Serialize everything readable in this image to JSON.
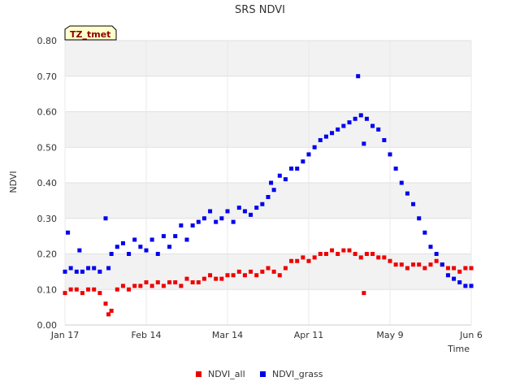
{
  "chart_data": {
    "type": "scatter",
    "title": "SRS NDVI",
    "xlabel": "Time",
    "ylabel": "NDVI",
    "badge": "TZ_tmet",
    "x_unit": "days since Jan 17",
    "xlim": [
      0,
      140
    ],
    "ylim": [
      0,
      0.8
    ],
    "yticks": [
      0.0,
      0.1,
      0.2,
      0.3,
      0.4,
      0.5,
      0.6,
      0.7,
      0.8
    ],
    "ytick_labels": [
      "0.00",
      "0.10",
      "0.20",
      "0.30",
      "0.40",
      "0.50",
      "0.60",
      "0.70",
      "0.80"
    ],
    "xticks": [
      0,
      28,
      56,
      84,
      112,
      140
    ],
    "xtick_labels": [
      "Jan 17",
      "Feb 14",
      "Mar 14",
      "Apr 11",
      "May 9",
      "Jun 6"
    ],
    "legend_position": "bottom-center",
    "series": [
      {
        "name": "NDVI_all",
        "color": "#ee0000",
        "points": [
          [
            0,
            0.09
          ],
          [
            2,
            0.1
          ],
          [
            4,
            0.1
          ],
          [
            6,
            0.09
          ],
          [
            8,
            0.1
          ],
          [
            10,
            0.1
          ],
          [
            12,
            0.09
          ],
          [
            14,
            0.06
          ],
          [
            15,
            0.03
          ],
          [
            16,
            0.04
          ],
          [
            18,
            0.1
          ],
          [
            20,
            0.11
          ],
          [
            22,
            0.1
          ],
          [
            24,
            0.11
          ],
          [
            26,
            0.11
          ],
          [
            28,
            0.12
          ],
          [
            30,
            0.11
          ],
          [
            32,
            0.12
          ],
          [
            34,
            0.11
          ],
          [
            36,
            0.12
          ],
          [
            38,
            0.12
          ],
          [
            40,
            0.11
          ],
          [
            42,
            0.13
          ],
          [
            44,
            0.12
          ],
          [
            46,
            0.12
          ],
          [
            48,
            0.13
          ],
          [
            50,
            0.14
          ],
          [
            52,
            0.13
          ],
          [
            54,
            0.13
          ],
          [
            56,
            0.14
          ],
          [
            58,
            0.14
          ],
          [
            60,
            0.15
          ],
          [
            62,
            0.14
          ],
          [
            64,
            0.15
          ],
          [
            66,
            0.14
          ],
          [
            68,
            0.15
          ],
          [
            70,
            0.16
          ],
          [
            72,
            0.15
          ],
          [
            74,
            0.14
          ],
          [
            76,
            0.16
          ],
          [
            78,
            0.18
          ],
          [
            80,
            0.18
          ],
          [
            82,
            0.19
          ],
          [
            84,
            0.18
          ],
          [
            86,
            0.19
          ],
          [
            88,
            0.2
          ],
          [
            90,
            0.2
          ],
          [
            92,
            0.21
          ],
          [
            94,
            0.2
          ],
          [
            96,
            0.21
          ],
          [
            98,
            0.21
          ],
          [
            100,
            0.2
          ],
          [
            102,
            0.19
          ],
          [
            103,
            0.09
          ],
          [
            104,
            0.2
          ],
          [
            106,
            0.2
          ],
          [
            108,
            0.19
          ],
          [
            110,
            0.19
          ],
          [
            112,
            0.18
          ],
          [
            114,
            0.17
          ],
          [
            116,
            0.17
          ],
          [
            118,
            0.16
          ],
          [
            120,
            0.17
          ],
          [
            122,
            0.17
          ],
          [
            124,
            0.16
          ],
          [
            126,
            0.17
          ],
          [
            128,
            0.18
          ],
          [
            130,
            0.17
          ],
          [
            132,
            0.16
          ],
          [
            134,
            0.16
          ],
          [
            136,
            0.15
          ],
          [
            138,
            0.16
          ],
          [
            140,
            0.16
          ]
        ]
      },
      {
        "name": "NDVI_grass",
        "color": "#0000ee",
        "points": [
          [
            0,
            0.15
          ],
          [
            1,
            0.26
          ],
          [
            2,
            0.16
          ],
          [
            4,
            0.15
          ],
          [
            5,
            0.21
          ],
          [
            6,
            0.15
          ],
          [
            8,
            0.16
          ],
          [
            10,
            0.16
          ],
          [
            12,
            0.15
          ],
          [
            14,
            0.3
          ],
          [
            15,
            0.16
          ],
          [
            16,
            0.2
          ],
          [
            18,
            0.22
          ],
          [
            20,
            0.23
          ],
          [
            22,
            0.2
          ],
          [
            24,
            0.24
          ],
          [
            26,
            0.22
          ],
          [
            28,
            0.21
          ],
          [
            30,
            0.24
          ],
          [
            32,
            0.2
          ],
          [
            34,
            0.25
          ],
          [
            36,
            0.22
          ],
          [
            38,
            0.25
          ],
          [
            40,
            0.28
          ],
          [
            42,
            0.24
          ],
          [
            44,
            0.28
          ],
          [
            46,
            0.29
          ],
          [
            48,
            0.3
          ],
          [
            50,
            0.32
          ],
          [
            52,
            0.29
          ],
          [
            54,
            0.3
          ],
          [
            56,
            0.32
          ],
          [
            58,
            0.29
          ],
          [
            60,
            0.33
          ],
          [
            62,
            0.32
          ],
          [
            64,
            0.31
          ],
          [
            66,
            0.33
          ],
          [
            68,
            0.34
          ],
          [
            70,
            0.36
          ],
          [
            71,
            0.4
          ],
          [
            72,
            0.38
          ],
          [
            74,
            0.42
          ],
          [
            76,
            0.41
          ],
          [
            78,
            0.44
          ],
          [
            80,
            0.44
          ],
          [
            82,
            0.46
          ],
          [
            84,
            0.48
          ],
          [
            86,
            0.5
          ],
          [
            88,
            0.52
          ],
          [
            90,
            0.53
          ],
          [
            92,
            0.54
          ],
          [
            94,
            0.55
          ],
          [
            96,
            0.56
          ],
          [
            98,
            0.57
          ],
          [
            100,
            0.58
          ],
          [
            101,
            0.7
          ],
          [
            102,
            0.59
          ],
          [
            103,
            0.51
          ],
          [
            104,
            0.58
          ],
          [
            106,
            0.56
          ],
          [
            108,
            0.55
          ],
          [
            110,
            0.52
          ],
          [
            112,
            0.48
          ],
          [
            114,
            0.44
          ],
          [
            116,
            0.4
          ],
          [
            118,
            0.37
          ],
          [
            120,
            0.34
          ],
          [
            122,
            0.3
          ],
          [
            124,
            0.26
          ],
          [
            126,
            0.22
          ],
          [
            128,
            0.2
          ],
          [
            130,
            0.17
          ],
          [
            132,
            0.14
          ],
          [
            134,
            0.13
          ],
          [
            136,
            0.12
          ],
          [
            138,
            0.11
          ],
          [
            140,
            0.11
          ]
        ]
      }
    ]
  }
}
